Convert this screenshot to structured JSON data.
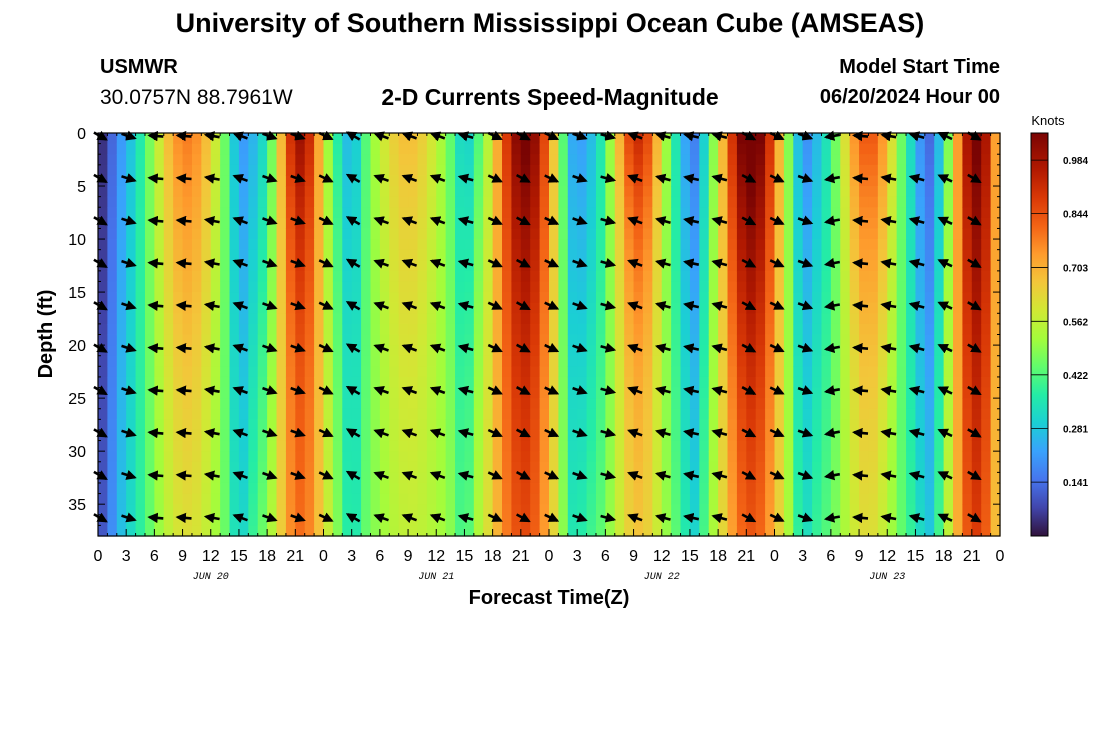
{
  "title_top": "University of Southern Mississippi Ocean Cube (AMSEAS)",
  "title_bottom": "University of Southern Mississippi Ocean Cube (AMSEAS)",
  "station": {
    "name": "USMWR",
    "coords": "30.0757N  88.7961W"
  },
  "model": {
    "label": "Model Start Time",
    "value": "06/20/2024 Hour 00"
  },
  "chart_data": {
    "type": "heatmap",
    "title": "2-D Currents Speed-Magnitude",
    "xlabel": "Forecast Time(Z)",
    "ylabel": "Depth (ft)",
    "x_unit": "hours since 06/20/2024 00Z",
    "xlim": [
      0,
      96
    ],
    "ylim": [
      38,
      0
    ],
    "x_ticks": [
      0,
      3,
      6,
      9,
      12,
      15,
      18,
      21,
      24,
      27,
      30,
      33,
      36,
      39,
      42,
      45,
      48,
      51,
      54,
      57,
      60,
      63,
      66,
      69,
      72,
      75,
      78,
      81,
      84,
      87,
      90,
      93,
      96
    ],
    "x_tick_labels": [
      "0",
      "3",
      "6",
      "9",
      "12",
      "15",
      "18",
      "21",
      "0",
      "3",
      "6",
      "9",
      "12",
      "15",
      "18",
      "21",
      "0",
      "3",
      "6",
      "9",
      "12",
      "15",
      "18",
      "21",
      "0",
      "3",
      "6",
      "9",
      "12",
      "15",
      "18",
      "21",
      "0"
    ],
    "day_labels": [
      {
        "text": "JUN 20",
        "hour": 12
      },
      {
        "text": "JUN 21",
        "hour": 36
      },
      {
        "text": "JUN 22",
        "hour": 60
      },
      {
        "text": "JUN 23",
        "hour": 84
      }
    ],
    "y_ticks": [
      0,
      5,
      10,
      15,
      20,
      25,
      30,
      35
    ],
    "y_tick_labels": [
      "0",
      "5",
      "10",
      "15",
      "20",
      "25",
      "30",
      "35"
    ],
    "colorbar": {
      "unit": "Knots",
      "min": 0,
      "max": 1.055,
      "ticks": [
        0.141,
        0.281,
        0.422,
        0.562,
        0.703,
        0.844,
        0.984
      ],
      "tick_labels": [
        "0.141",
        "0.281",
        "0.422",
        "0.562",
        "0.703",
        "0.844",
        "0.984"
      ]
    },
    "speed_peaks_surface": [
      {
        "center_hour": 9.5,
        "width_hours": 5.0,
        "speed": 0.66,
        "decay_depth_ft": 45
      },
      {
        "center_hour": 21.5,
        "width_hours": 3.0,
        "speed": 0.86,
        "decay_depth_ft": 32
      },
      {
        "center_hour": 33.0,
        "width_hours": 6.0,
        "speed": 0.56,
        "decay_depth_ft": 55
      },
      {
        "center_hour": 45.5,
        "width_hours": 4.0,
        "speed": 0.95,
        "decay_depth_ft": 40
      },
      {
        "center_hour": 57.5,
        "width_hours": 3.5,
        "speed": 0.8,
        "decay_depth_ft": 26
      },
      {
        "center_hour": 69.5,
        "width_hours": 4.0,
        "speed": 1.0,
        "decay_depth_ft": 36
      },
      {
        "center_hour": 82.0,
        "width_hours": 4.0,
        "speed": 0.72,
        "decay_depth_ft": 30
      },
      {
        "center_hour": 93.5,
        "width_hours": 3.0,
        "speed": 0.95,
        "decay_depth_ft": 60
      }
    ],
    "speed_minima_hours": [
      0.5,
      15.0,
      27.0,
      39.0,
      50.5,
      63.5,
      75.0,
      88.5
    ],
    "vector_depths_ft": [
      0,
      4,
      8,
      12,
      16,
      20,
      24,
      28,
      32,
      36
    ],
    "vector_hours": [
      0,
      3,
      6,
      9,
      12,
      15,
      18,
      21,
      24,
      27,
      30,
      33,
      36,
      39,
      42,
      45,
      48,
      51,
      54,
      57,
      60,
      63,
      66,
      69,
      72,
      75,
      78,
      81,
      84,
      87,
      90,
      93
    ],
    "vector_angle_by_hour_deg": [
      30,
      18,
      185,
      185,
      190,
      200,
      20,
      20,
      25,
      210,
      200,
      200,
      200,
      195,
      25,
      28,
      25,
      20,
      15,
      200,
      195,
      192,
      195,
      28,
      25,
      20,
      170,
      185,
      190,
      195,
      205,
      30
    ]
  }
}
